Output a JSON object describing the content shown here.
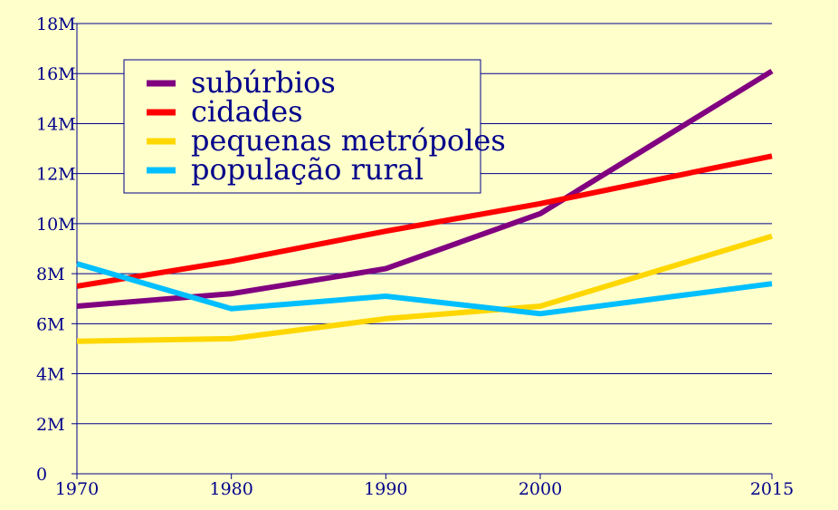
{
  "chart_data": {
    "type": "line",
    "x": [
      1970,
      1980,
      1990,
      2000,
      2015
    ],
    "x_tick_labels": [
      "1970",
      "1980",
      "1990",
      "2000",
      "2015"
    ],
    "y_tick_values": [
      0,
      2,
      4,
      6,
      8,
      10,
      12,
      14,
      16,
      18
    ],
    "y_tick_labels": [
      "0",
      "2M",
      "4M",
      "6M",
      "8M",
      "10M",
      "12M",
      "14M",
      "16M",
      "18M"
    ],
    "ylim": [
      0,
      18
    ],
    "xlim": [
      1970,
      2015
    ],
    "grid": "horizontal",
    "legend_position": "top-left",
    "series": [
      {
        "name": "subúrbios",
        "color": "#800080",
        "values": [
          6.7,
          7.2,
          8.2,
          10.4,
          16.1
        ]
      },
      {
        "name": "cidades",
        "color": "#ff0000",
        "values": [
          7.5,
          8.5,
          9.7,
          10.8,
          12.7
        ]
      },
      {
        "name": "pequenas metrópoles",
        "color": "#ffd700",
        "values": [
          5.3,
          5.4,
          6.2,
          6.7,
          9.5
        ]
      },
      {
        "name": "população rural",
        "color": "#00bfff",
        "values": [
          8.4,
          6.6,
          7.1,
          6.4,
          7.6
        ]
      }
    ]
  }
}
